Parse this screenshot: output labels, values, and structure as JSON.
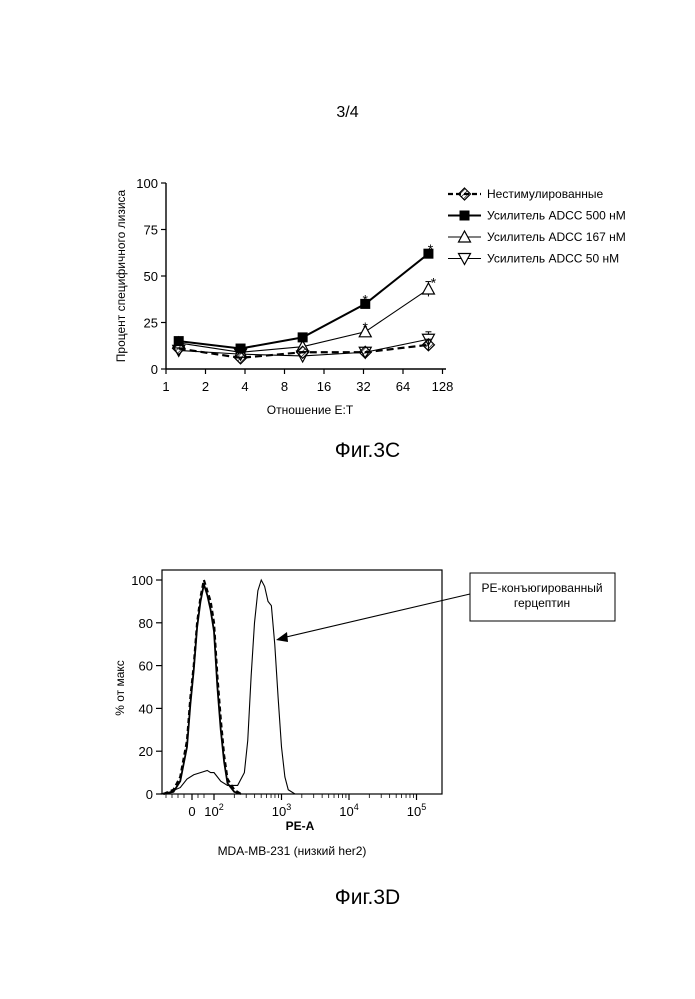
{
  "page": {
    "number": "3/4"
  },
  "figures": {
    "fig3c": {
      "caption": "Фиг.3C"
    },
    "fig3d": {
      "caption": "Фиг.3D"
    }
  },
  "chart_data": [
    {
      "type": "line",
      "ylabel": "Процент специфичного лизиса",
      "xlabel": "Отношение E:T",
      "x_scale": "log2",
      "x_ticks": [
        "1",
        "2",
        "4",
        "8",
        "16",
        "32",
        "64",
        "128"
      ],
      "x_tick_values": [
        1,
        2,
        4,
        8,
        16,
        32,
        64,
        128
      ],
      "y_ticks": [
        "0",
        "25",
        "50",
        "75",
        "100"
      ],
      "ylim": [
        0,
        100
      ],
      "legend_position": "top-right",
      "x": [
        1.25,
        3.7,
        11,
        33,
        100
      ],
      "series": [
        {
          "name": "Нестимулированные",
          "values": [
            11,
            6,
            9,
            9,
            13
          ],
          "marker": "hatched-diamond",
          "dash": true,
          "errors": [
            0,
            0,
            0,
            0,
            3
          ]
        },
        {
          "name": "Усилитель ADCC 500 нМ",
          "values": [
            15,
            11,
            17,
            35,
            62
          ],
          "marker": "filled-square",
          "dash": false,
          "errors": [
            0,
            0,
            0,
            2,
            2
          ]
        },
        {
          "name": "Усилитель ADCC 167 нМ",
          "values": [
            14,
            9,
            12,
            20,
            43
          ],
          "marker": "open-triangle-up",
          "dash": false,
          "errors": [
            0,
            0,
            0,
            0,
            4
          ]
        },
        {
          "name": "Усилитель ADCC 50 нМ",
          "values": [
            10,
            8,
            7,
            9,
            16
          ],
          "marker": "open-triangle-down",
          "dash": false,
          "errors": [
            0,
            0,
            0,
            0,
            4
          ]
        }
      ],
      "annotations": [
        {
          "text": "*",
          "x": 33,
          "y": 38
        },
        {
          "text": "*",
          "x": 33,
          "y": 23
        },
        {
          "text": "*",
          "x": 100,
          "y": 65
        },
        {
          "text": "*",
          "x": 100,
          "y": 47
        }
      ]
    },
    {
      "type": "line",
      "ylabel": "% от макс",
      "xlabel": "PE-A",
      "subtitle": "MDA-MB-231 (низкий her2)",
      "y_ticks": [
        "0",
        "20",
        "40",
        "60",
        "80",
        "100"
      ],
      "ylim": [
        0,
        100
      ],
      "x_tick_labels": [
        {
          "base": "0",
          "exp": ""
        },
        {
          "base": "10",
          "exp": "2"
        },
        {
          "base": "10",
          "exp": "3"
        },
        {
          "base": "10",
          "exp": "4"
        },
        {
          "base": "10",
          "exp": "5"
        }
      ],
      "callout": {
        "line1": "PE-конъюгированный",
        "line2": "герцептин"
      },
      "series": [
        {
          "name": "",
          "style": "dashed",
          "x_log": [
            1.25,
            1.4,
            1.5,
            1.6,
            1.65,
            1.7,
            1.75,
            1.8,
            1.85,
            1.9,
            1.95,
            2.0,
            2.05,
            2.1,
            2.15,
            2.2,
            2.3,
            2.4
          ],
          "y": [
            0,
            2,
            8,
            25,
            45,
            60,
            80,
            92,
            100,
            95,
            90,
            80,
            55,
            35,
            18,
            7,
            2,
            0
          ]
        },
        {
          "name": "",
          "style": "solid-bold",
          "x_log": [
            1.25,
            1.4,
            1.5,
            1.6,
            1.65,
            1.7,
            1.75,
            1.8,
            1.85,
            1.9,
            1.95,
            2.0,
            2.05,
            2.1,
            2.15,
            2.2,
            2.3,
            2.4
          ],
          "y": [
            0,
            1,
            6,
            22,
            42,
            58,
            78,
            90,
            98,
            93,
            86,
            76,
            50,
            30,
            15,
            5,
            1,
            0
          ]
        },
        {
          "name": "",
          "style": "solid-thin",
          "x_log": [
            1.2,
            1.35,
            1.5,
            1.6,
            1.7,
            1.8,
            1.9,
            1.95,
            2.0,
            2.05,
            2.1,
            2.2,
            2.35,
            2.45,
            2.5,
            2.55,
            2.6,
            2.65,
            2.7,
            2.75,
            2.8,
            2.85,
            2.9,
            2.95,
            3.0,
            3.05,
            3.1,
            3.2
          ],
          "y": [
            0,
            1,
            3,
            7,
            9,
            10,
            11,
            10,
            10,
            8,
            6,
            4,
            4,
            10,
            25,
            55,
            80,
            95,
            100,
            97,
            90,
            88,
            70,
            45,
            22,
            8,
            2,
            0
          ]
        }
      ]
    }
  ]
}
